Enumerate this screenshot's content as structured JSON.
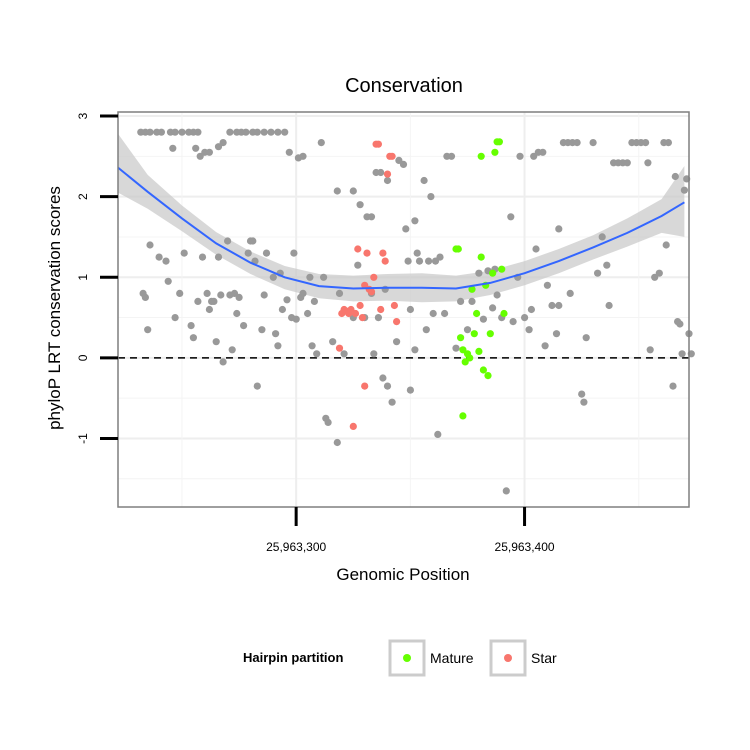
{
  "chart_data": {
    "type": "scatter",
    "title": "Conservation",
    "xlabel": "Genomic Position",
    "ylabel": "phyloP LRT conservation scores",
    "xlim": [
      25963222,
      25963472
    ],
    "ylim": [
      -1.85,
      3.05
    ],
    "x_ticks": [
      25963300,
      25963400
    ],
    "x_tick_labels": [
      "25,963,300",
      "25,963,400"
    ],
    "y_ticks": [
      -1,
      0,
      1,
      2,
      3
    ],
    "y_tick_labels": [
      "-1",
      "0",
      "1",
      "2",
      "3"
    ],
    "reference_line": {
      "y": 0,
      "style": "dashed"
    },
    "grid": true,
    "legend": {
      "title": "Hairpin partition",
      "placement": "bottom",
      "entries": [
        {
          "label": "Mature",
          "color": "#66ff00"
        },
        {
          "label": "Star",
          "color": "#f8766d"
        }
      ]
    },
    "colors": {
      "other": "#999999",
      "Mature": "#66ff00",
      "Star": "#f8766d",
      "smooth": "#3366ff",
      "ribbon": "#c8c8c8"
    },
    "series": [
      {
        "name": "Other",
        "color": "#999999",
        "points": [
          [
            25963232,
            2.8
          ],
          [
            25963234,
            2.8
          ],
          [
            25963236,
            2.8
          ],
          [
            25963239,
            2.8
          ],
          [
            25963241,
            2.8
          ],
          [
            25963245,
            2.8
          ],
          [
            25963247,
            2.8
          ],
          [
            25963250,
            2.8
          ],
          [
            25963253,
            2.8
          ],
          [
            25963255,
            2.8
          ],
          [
            25963257,
            2.8
          ],
          [
            25963258,
            2.5
          ],
          [
            25963260,
            2.55
          ],
          [
            25963262,
            2.55
          ],
          [
            25963266,
            2.62
          ],
          [
            25963268,
            2.67
          ],
          [
            25963256,
            2.6
          ],
          [
            25963271,
            2.8
          ],
          [
            25963274,
            2.8
          ],
          [
            25963276,
            2.8
          ],
          [
            25963278,
            2.8
          ],
          [
            25963281,
            2.8
          ],
          [
            25963283,
            2.8
          ],
          [
            25963286,
            2.8
          ],
          [
            25963289,
            2.8
          ],
          [
            25963292,
            2.8
          ],
          [
            25963295,
            2.8
          ],
          [
            25963297,
            2.55
          ],
          [
            25963301,
            2.48
          ],
          [
            25963303,
            2.5
          ],
          [
            25963311,
            2.67
          ],
          [
            25963318,
            2.07
          ],
          [
            25963325,
            2.07
          ],
          [
            25963328,
            1.9
          ],
          [
            25963331,
            1.75
          ],
          [
            25963333,
            1.75
          ],
          [
            25963335,
            2.3
          ],
          [
            25963337,
            2.3
          ],
          [
            25963340,
            2.2
          ],
          [
            25963233,
            0.8
          ],
          [
            25963234,
            0.75
          ],
          [
            25963235,
            0.35
          ],
          [
            25963236,
            1.4
          ],
          [
            25963240,
            1.25
          ],
          [
            25963243,
            1.2
          ],
          [
            25963244,
            0.95
          ],
          [
            25963247,
            0.5
          ],
          [
            25963249,
            0.8
          ],
          [
            25963251,
            1.3
          ],
          [
            25963254,
            0.4
          ],
          [
            25963255,
            0.25
          ],
          [
            25963257,
            0.7
          ],
          [
            25963259,
            1.25
          ],
          [
            25963261,
            0.8
          ],
          [
            25963262,
            0.6
          ],
          [
            25963264,
            0.7
          ],
          [
            25963265,
            0.2
          ],
          [
            25963266,
            1.25
          ],
          [
            25963267,
            0.78
          ],
          [
            25963268,
            -0.05
          ],
          [
            25963270,
            1.45
          ],
          [
            25963271,
            0.78
          ],
          [
            25963272,
            0.1
          ],
          [
            25963274,
            0.55
          ],
          [
            25963275,
            0.75
          ],
          [
            25963277,
            0.4
          ],
          [
            25963279,
            1.3
          ],
          [
            25963280,
            1.45
          ],
          [
            25963281,
            1.45
          ],
          [
            25963282,
            1.2
          ],
          [
            25963283,
            -0.35
          ],
          [
            25963285,
            0.35
          ],
          [
            25963286,
            0.78
          ],
          [
            25963287,
            1.3
          ],
          [
            25963290,
            1.0
          ],
          [
            25963291,
            0.3
          ],
          [
            25963292,
            0.15
          ],
          [
            25963294,
            0.6
          ],
          [
            25963296,
            0.72
          ],
          [
            25963298,
            0.5
          ],
          [
            25963300,
            0.48
          ],
          [
            25963302,
            0.75
          ],
          [
            25963303,
            0.8
          ],
          [
            25963305,
            0.55
          ],
          [
            25963306,
            1.0
          ],
          [
            25963308,
            0.7
          ],
          [
            25963309,
            0.05
          ],
          [
            25963312,
            1.0
          ],
          [
            25963313,
            -0.75
          ],
          [
            25963314,
            -0.8
          ],
          [
            25963318,
            -1.05
          ],
          [
            25963319,
            0.8
          ],
          [
            25963321,
            0.05
          ],
          [
            25963325,
            0.5
          ],
          [
            25963327,
            1.15
          ],
          [
            25963330,
            0.5
          ],
          [
            25963333,
            0.8
          ],
          [
            25963334,
            0.05
          ],
          [
            25963336,
            0.5
          ],
          [
            25963338,
            -0.25
          ],
          [
            25963340,
            -0.35
          ],
          [
            25963342,
            -0.55
          ],
          [
            25963344,
            0.2
          ],
          [
            25963345,
            2.45
          ],
          [
            25963347,
            2.4
          ],
          [
            25963348,
            1.6
          ],
          [
            25963349,
            1.2
          ],
          [
            25963350,
            0.6
          ],
          [
            25963352,
            1.7
          ],
          [
            25963353,
            1.3
          ],
          [
            25963354,
            1.2
          ],
          [
            25963356,
            2.2
          ],
          [
            25963358,
            1.2
          ],
          [
            25963359,
            2.0
          ],
          [
            25963361,
            1.2
          ],
          [
            25963362,
            -0.95
          ],
          [
            25963363,
            1.25
          ],
          [
            25963365,
            0.55
          ],
          [
            25963366,
            2.5
          ],
          [
            25963368,
            2.5
          ],
          [
            25963370,
            0.12
          ],
          [
            25963372,
            0.7
          ],
          [
            25963375,
            0.35
          ],
          [
            25963377,
            0.7
          ],
          [
            25963380,
            1.05
          ],
          [
            25963382,
            0.48
          ],
          [
            25963384,
            1.08
          ],
          [
            25963386,
            0.62
          ],
          [
            25963388,
            0.78
          ],
          [
            25963390,
            0.5
          ],
          [
            25963392,
            -1.65
          ],
          [
            25963394,
            1.75
          ],
          [
            25963395,
            0.45
          ],
          [
            25963397,
            1.0
          ],
          [
            25963398,
            2.5
          ],
          [
            25963400,
            0.5
          ],
          [
            25963402,
            0.35
          ],
          [
            25963403,
            0.6
          ],
          [
            25963404,
            2.5
          ],
          [
            25963406,
            2.55
          ],
          [
            25963408,
            2.55
          ],
          [
            25963410,
            0.9
          ],
          [
            25963412,
            0.65
          ],
          [
            25963414,
            0.3
          ],
          [
            25963415,
            0.65
          ],
          [
            25963417,
            2.67
          ],
          [
            25963419,
            2.67
          ],
          [
            25963421,
            2.67
          ],
          [
            25963423,
            2.67
          ],
          [
            25963425,
            -0.45
          ],
          [
            25963426,
            -0.55
          ],
          [
            25963427,
            0.25
          ],
          [
            25963430,
            2.67
          ],
          [
            25963432,
            1.05
          ],
          [
            25963434,
            1.5
          ],
          [
            25963436,
            1.15
          ],
          [
            25963437,
            0.65
          ],
          [
            25963439,
            2.42
          ],
          [
            25963441,
            2.42
          ],
          [
            25963443,
            2.42
          ],
          [
            25963445,
            2.42
          ],
          [
            25963447,
            2.67
          ],
          [
            25963449,
            2.67
          ],
          [
            25963451,
            2.67
          ],
          [
            25963453,
            2.67
          ],
          [
            25963454,
            2.42
          ],
          [
            25963455,
            0.1
          ],
          [
            25963457,
            1.0
          ],
          [
            25963459,
            1.05
          ],
          [
            25963461,
            2.67
          ],
          [
            25963463,
            2.67
          ],
          [
            25963465,
            -0.35
          ],
          [
            25963467,
            0.45
          ],
          [
            25963468,
            0.42
          ],
          [
            25963469,
            0.05
          ],
          [
            25963470,
            2.08
          ],
          [
            25963471,
            2.22
          ],
          [
            25963472,
            0.3
          ],
          [
            25963473,
            0.05
          ],
          [
            25963466,
            2.25
          ],
          [
            25963462,
            1.4
          ],
          [
            25963420,
            0.8
          ],
          [
            25963415,
            1.6
          ],
          [
            25963405,
            1.35
          ],
          [
            25963409,
            0.15
          ],
          [
            25963387,
            1.1
          ],
          [
            25963360,
            0.55
          ],
          [
            25963357,
            0.35
          ],
          [
            25963352,
            0.1
          ],
          [
            25963350,
            -0.4
          ],
          [
            25963339,
            0.85
          ],
          [
            25963316,
            0.2
          ],
          [
            25963293,
            1.05
          ],
          [
            25963246,
            2.6
          ],
          [
            25963273,
            0.8
          ],
          [
            25963263,
            0.7
          ],
          [
            25963299,
            1.3
          ],
          [
            25963307,
            0.15
          ]
        ]
      },
      {
        "name": "Mature",
        "color": "#66ff00",
        "points": [
          [
            25963370,
            1.35
          ],
          [
            25963371,
            1.35
          ],
          [
            25963372,
            0.25
          ],
          [
            25963373,
            0.1
          ],
          [
            25963374,
            -0.05
          ],
          [
            25963375,
            0.05
          ],
          [
            25963376,
            0.0
          ],
          [
            25963377,
            0.85
          ],
          [
            25963378,
            0.3
          ],
          [
            25963379,
            0.55
          ],
          [
            25963380,
            0.08
          ],
          [
            25963381,
            1.25
          ],
          [
            25963381,
            2.5
          ],
          [
            25963382,
            -0.15
          ],
          [
            25963383,
            0.9
          ],
          [
            25963384,
            -0.22
          ],
          [
            25963385,
            0.3
          ],
          [
            25963386,
            1.05
          ],
          [
            25963387,
            2.55
          ],
          [
            25963388,
            2.68
          ],
          [
            25963389,
            2.68
          ],
          [
            25963390,
            1.1
          ],
          [
            25963391,
            0.55
          ],
          [
            25963373,
            -0.72
          ]
        ]
      },
      {
        "name": "Star",
        "color": "#f8766d",
        "points": [
          [
            25963319,
            0.12
          ],
          [
            25963320,
            0.55
          ],
          [
            25963321,
            0.6
          ],
          [
            25963322,
            0.58
          ],
          [
            25963323,
            0.55
          ],
          [
            25963324,
            0.6
          ],
          [
            25963325,
            -0.85
          ],
          [
            25963326,
            0.55
          ],
          [
            25963327,
            1.35
          ],
          [
            25963328,
            0.65
          ],
          [
            25963329,
            0.5
          ],
          [
            25963330,
            -0.35
          ],
          [
            25963331,
            1.3
          ],
          [
            25963332,
            0.85
          ],
          [
            25963333,
            0.82
          ],
          [
            25963334,
            1.0
          ],
          [
            25963335,
            2.65
          ],
          [
            25963336,
            2.65
          ],
          [
            25963337,
            0.6
          ],
          [
            25963338,
            1.3
          ],
          [
            25963339,
            1.2
          ],
          [
            25963340,
            2.28
          ],
          [
            25963341,
            2.5
          ],
          [
            25963342,
            2.5
          ],
          [
            25963343,
            0.65
          ],
          [
            25963344,
            0.45
          ],
          [
            25963330,
            0.9
          ]
        ]
      }
    ],
    "smooth": {
      "x": [
        25963222,
        25963235,
        25963250,
        25963265,
        25963280,
        25963295,
        25963310,
        25963325,
        25963340,
        25963355,
        25963370,
        25963385,
        25963400,
        25963415,
        25963430,
        25963445,
        25963460,
        25963470
      ],
      "y": [
        2.36,
        2.06,
        1.73,
        1.42,
        1.18,
        1.0,
        0.89,
        0.86,
        0.87,
        0.87,
        0.86,
        0.93,
        1.05,
        1.2,
        1.37,
        1.55,
        1.76,
        1.93
      ],
      "lower": [
        2.05,
        1.85,
        1.57,
        1.28,
        1.04,
        0.85,
        0.74,
        0.7,
        0.71,
        0.69,
        0.7,
        0.78,
        0.9,
        1.05,
        1.22,
        1.38,
        1.55,
        1.5
      ],
      "upper": [
        2.78,
        2.27,
        1.89,
        1.56,
        1.32,
        1.14,
        1.04,
        1.02,
        1.04,
        1.05,
        1.02,
        1.08,
        1.2,
        1.35,
        1.52,
        1.73,
        1.97,
        2.38
      ]
    }
  }
}
